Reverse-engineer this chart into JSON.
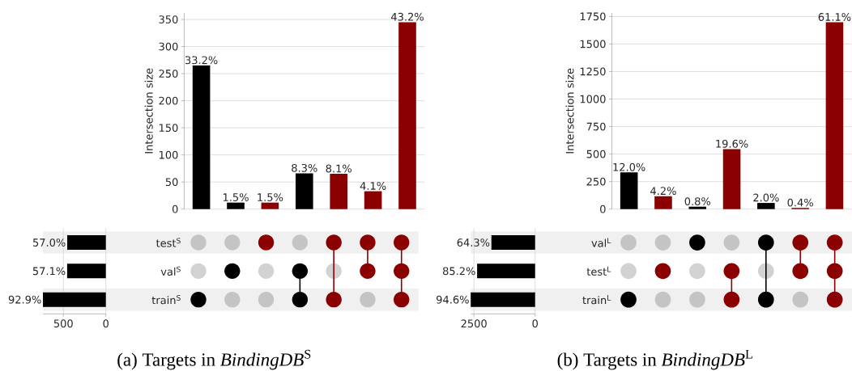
{
  "chart_data": [
    {
      "type": "bar",
      "ylabel": "Intersection size",
      "categories": [
        null,
        null,
        null,
        null,
        null,
        null,
        null
      ],
      "values": [
        265,
        12,
        12,
        66,
        65,
        33,
        345
      ],
      "colors": [
        "#000000",
        "#000000",
        "#8b0000",
        "#000000",
        "#8b0000",
        "#8b0000",
        "#8b0000"
      ],
      "ylim": [
        0,
        362
      ],
      "yticks": [
        0,
        50,
        100,
        150,
        200,
        250,
        300,
        350
      ],
      "grid": "y",
      "annotations": [
        {
          "text": "33.2%",
          "y": 265
        },
        {
          "text": "1.5%",
          "y": 12
        },
        {
          "text": "1.5%",
          "y": 12
        },
        {
          "text": "8.3%",
          "y": 66
        },
        {
          "text": "8.1%",
          "y": 65
        },
        {
          "text": "4.1%",
          "y": 33
        },
        {
          "text": "43.2%",
          "y": 345
        }
      ]
    },
    {
      "type": "bar",
      "orientation": "horizontal",
      "categories": [
        "test$^{S}$",
        "val$^{S}$",
        "train$^{S}$"
      ],
      "values": [
        455,
        456,
        741
      ],
      "color": "#000000",
      "xlim": [
        741,
        0
      ],
      "xticks": [
        500,
        0
      ],
      "grid": "x",
      "annotations": [
        {
          "text": "57.0%",
          "x": 455
        },
        {
          "text": "57.1%",
          "x": 456
        },
        {
          "text": "92.9%",
          "x": 741
        }
      ]
    },
    {
      "type": "other",
      "cells": [
        [
          false,
          false,
          true,
          false,
          true,
          true,
          true
        ],
        [
          false,
          true,
          false,
          true,
          false,
          true,
          true
        ],
        [
          true,
          false,
          false,
          true,
          true,
          false,
          true
        ]
      ],
      "annotations": [
        "(a) Targets in *BindingDB*$^{S}$"
      ]
    },
    {
      "type": "bar",
      "ylabel": "Intersection size",
      "categories": [
        null,
        null,
        null,
        null,
        null,
        null,
        null
      ],
      "values": [
        333,
        117,
        22,
        545,
        56,
        11,
        1697
      ],
      "colors": [
        "#000000",
        "#8b0000",
        "#000000",
        "#8b0000",
        "#000000",
        "#8b0000",
        "#8b0000"
      ],
      "ylim": [
        0,
        1782
      ],
      "yticks": [
        0,
        250,
        500,
        750,
        1000,
        1250,
        1500,
        1750
      ],
      "grid": "y",
      "annotations": [
        {
          "text": "12.0%",
          "y": 333
        },
        {
          "text": "4.2%",
          "y": 117
        },
        {
          "text": "0.8%",
          "y": 22
        },
        {
          "text": "19.6%",
          "y": 545
        },
        {
          "text": "2.0%",
          "y": 56
        },
        {
          "text": "0.4%",
          "y": 11
        },
        {
          "text": "61.1%",
          "y": 1697
        }
      ]
    },
    {
      "type": "bar",
      "orientation": "horizontal",
      "categories": [
        "val$^{L}$",
        "test$^{L}$",
        "train$^{L}$"
      ],
      "values": [
        1786,
        2370,
        2631
      ],
      "color": "#000000",
      "xlim": [
        2631,
        0
      ],
      "xticks": [
        2500,
        0
      ],
      "grid": "x",
      "annotations": [
        {
          "text": "64.3%",
          "x": 1786
        },
        {
          "text": "85.2%",
          "x": 2370
        },
        {
          "text": "94.6%",
          "x": 2631
        }
      ]
    },
    {
      "type": "other",
      "cells": [
        [
          false,
          false,
          true,
          false,
          true,
          true,
          true
        ],
        [
          false,
          true,
          false,
          true,
          false,
          true,
          true
        ],
        [
          true,
          false,
          false,
          true,
          true,
          false,
          true
        ]
      ],
      "annotations": [
        "(b) Targets in *BindingDB*$^{L}$"
      ]
    }
  ]
}
